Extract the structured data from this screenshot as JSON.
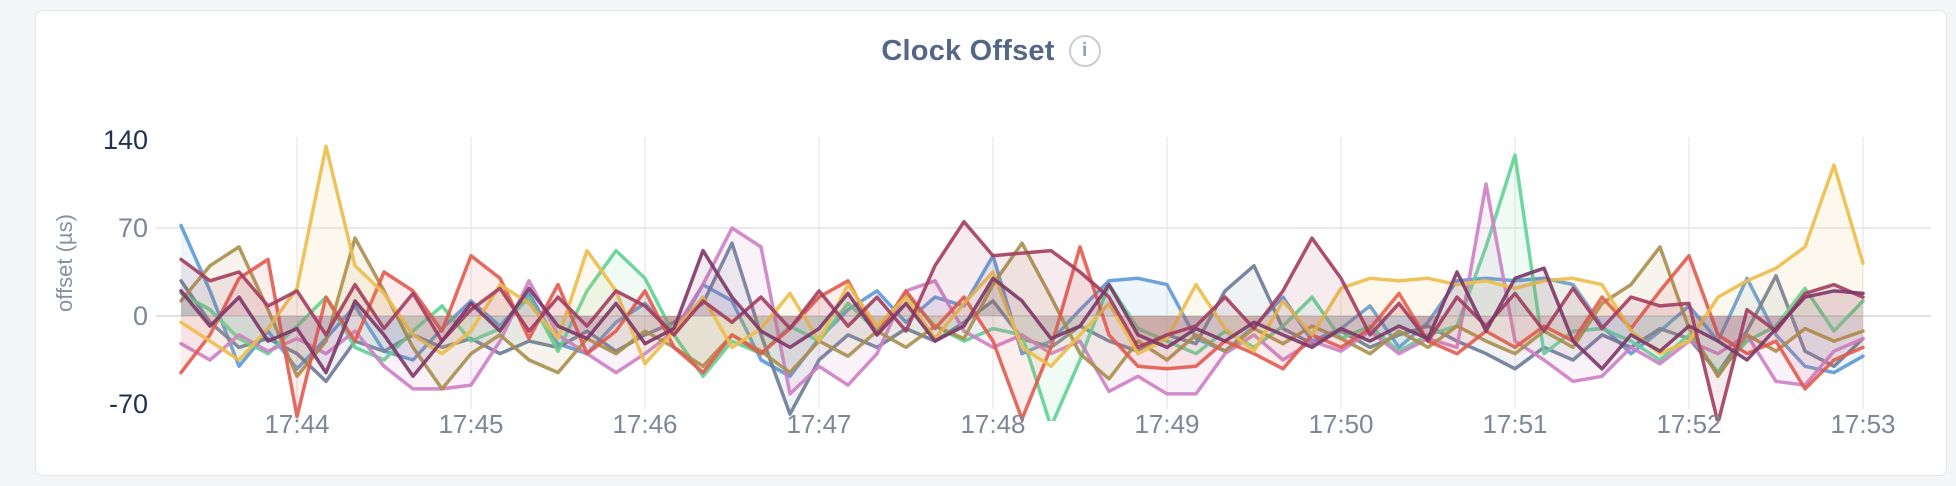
{
  "page": {
    "background": "#f4f5f7",
    "card_background": "#ffffff",
    "card_border": "#e3e5e9"
  },
  "header": {
    "title": "Clock Offset",
    "info_glyph": "i"
  },
  "axis_colors": {
    "tick_muted": "#7c8798",
    "tick_strong": "#1f3150",
    "grid_vertical": "#ececec",
    "grid_h70": "#e3e3e3",
    "grid_h0": "#d8d8d8"
  },
  "chart_data": {
    "type": "line",
    "title": "Clock Offset",
    "xlabel": "",
    "ylabel": "offset (µs)",
    "ylim": [
      -70,
      140
    ],
    "grid": true,
    "legend": "none",
    "x_sample_interval_seconds": 10,
    "x_start_time": "17:43:20",
    "yticks": [
      {
        "label": "140",
        "value": 140,
        "strong": true,
        "gridline": false
      },
      {
        "label": "70",
        "value": 70,
        "strong": false,
        "gridline": true
      },
      {
        "label": "0",
        "value": 0,
        "strong": false,
        "gridline": true
      },
      {
        "label": "-70",
        "value": -70,
        "strong": true,
        "gridline": false
      }
    ],
    "xticks": [
      {
        "label": "17:44",
        "index": 4
      },
      {
        "label": "17:45",
        "index": 10
      },
      {
        "label": "17:46",
        "index": 16
      },
      {
        "label": "17:47",
        "index": 22
      },
      {
        "label": "17:48",
        "index": 28
      },
      {
        "label": "17:49",
        "index": 34
      },
      {
        "label": "17:50",
        "index": 40
      },
      {
        "label": "17:51",
        "index": 46
      },
      {
        "label": "17:52",
        "index": 52
      },
      {
        "label": "17:53",
        "index": 58
      }
    ],
    "series": [
      {
        "name": "blue",
        "color": "#5c99d6",
        "values": [
          72,
          20,
          -40,
          -12,
          -42,
          -18,
          8,
          -28,
          -35,
          -10,
          12,
          -8,
          18,
          -22,
          -30,
          -5,
          10,
          -15,
          25,
          12,
          -35,
          -48,
          -18,
          5,
          20,
          -5,
          15,
          8,
          48,
          -30,
          -20,
          5,
          28,
          30,
          25,
          -18,
          -28,
          -8,
          15,
          -20,
          -10,
          8,
          -25,
          -5,
          28,
          30,
          28,
          30,
          25,
          -8,
          -30,
          -12,
          8,
          -20,
          30,
          -15,
          -40,
          -45,
          -32
        ]
      },
      {
        "name": "slate",
        "color": "#6a7b96",
        "values": [
          28,
          -5,
          -25,
          -18,
          -30,
          -52,
          -20,
          -28,
          -15,
          -25,
          -18,
          -30,
          -20,
          -25,
          -12,
          -28,
          -15,
          -5,
          10,
          58,
          -15,
          -78,
          -35,
          -15,
          -25,
          -10,
          -20,
          -5,
          12,
          -18,
          -25,
          -8,
          -20,
          -28,
          -15,
          -22,
          20,
          40,
          -10,
          -22,
          -12,
          -25,
          -15,
          -8,
          -20,
          -30,
          -42,
          -25,
          -35,
          -15,
          -25,
          -10,
          -18,
          -45,
          -12,
          32,
          -28,
          -40,
          -18
        ]
      },
      {
        "name": "green",
        "color": "#5fd394",
        "values": [
          18,
          5,
          -18,
          -30,
          -8,
          15,
          -25,
          -35,
          -12,
          8,
          -20,
          -10,
          15,
          -28,
          20,
          52,
          30,
          -15,
          -48,
          -20,
          -30,
          -8,
          -20,
          10,
          -12,
          18,
          -8,
          -20,
          -10,
          -15,
          -88,
          -35,
          25,
          -10,
          -20,
          -30,
          -12,
          -25,
          -8,
          15,
          -18,
          -8,
          -28,
          -15,
          -8,
          55,
          128,
          -30,
          -12,
          -10,
          -20,
          -35,
          -15,
          -45,
          -20,
          -8,
          22,
          -12,
          12
        ]
      },
      {
        "name": "orchid",
        "color": "#cd7fc4",
        "values": [
          -22,
          -35,
          -15,
          -28,
          -18,
          -30,
          -12,
          -40,
          -58,
          -58,
          -55,
          -20,
          28,
          -15,
          -30,
          -45,
          -30,
          -12,
          25,
          70,
          55,
          -62,
          -40,
          -55,
          -30,
          20,
          28,
          -12,
          -25,
          -15,
          -30,
          -20,
          -60,
          -48,
          -62,
          -62,
          -30,
          -15,
          -35,
          -20,
          -28,
          -12,
          -30,
          -18,
          -25,
          105,
          -20,
          -35,
          -52,
          -48,
          -25,
          -38,
          -20,
          -30,
          -15,
          -52,
          -55,
          -28,
          -18
        ]
      },
      {
        "name": "olive",
        "color": "#a98f4c",
        "values": [
          12,
          40,
          55,
          5,
          -48,
          -20,
          62,
          20,
          -25,
          -58,
          -30,
          -15,
          -35,
          -45,
          -18,
          -30,
          -12,
          -25,
          -40,
          -15,
          -28,
          -45,
          -20,
          -32,
          -12,
          -25,
          -8,
          -18,
          25,
          58,
          15,
          -30,
          -50,
          -20,
          -35,
          -15,
          -28,
          -10,
          -22,
          -8,
          -18,
          -30,
          -12,
          -25,
          -8,
          -20,
          -30,
          -12,
          -25,
          10,
          25,
          55,
          -10,
          -48,
          -15,
          -28,
          -10,
          -20,
          -12
        ]
      },
      {
        "name": "red",
        "color": "#e25a4e",
        "values": [
          -45,
          -15,
          30,
          45,
          -80,
          15,
          -20,
          35,
          20,
          -12,
          48,
          30,
          -18,
          25,
          -30,
          -12,
          20,
          -25,
          -45,
          -15,
          -30,
          -10,
          15,
          28,
          -15,
          20,
          -10,
          15,
          -20,
          -82,
          -25,
          55,
          -15,
          -40,
          -42,
          -40,
          -20,
          -30,
          -42,
          -15,
          -25,
          -10,
          18,
          -20,
          -30,
          -12,
          -25,
          -8,
          -20,
          15,
          -10,
          20,
          48,
          -15,
          -30,
          -20,
          -58,
          -35,
          -25
        ]
      },
      {
        "name": "yellow",
        "color": "#edbd4a",
        "values": [
          -5,
          -20,
          -35,
          -10,
          22,
          135,
          40,
          18,
          -15,
          -30,
          -12,
          25,
          10,
          -18,
          52,
          20,
          -38,
          -12,
          15,
          -25,
          -10,
          18,
          -20,
          25,
          -8,
          15,
          -18,
          10,
          35,
          -25,
          -40,
          -15,
          10,
          -30,
          -18,
          25,
          -10,
          -28,
          12,
          -15,
          22,
          30,
          28,
          30,
          25,
          28,
          22,
          28,
          30,
          25,
          -12,
          -30,
          -20,
          15,
          28,
          38,
          55,
          120,
          42
        ]
      },
      {
        "name": "maroon",
        "color": "#a33d5e",
        "values": [
          45,
          28,
          35,
          8,
          20,
          -15,
          25,
          -10,
          18,
          -20,
          5,
          22,
          -12,
          15,
          -8,
          20,
          8,
          -15,
          12,
          -5,
          15,
          -10,
          20,
          -8,
          15,
          -12,
          40,
          75,
          48,
          50,
          52,
          35,
          15,
          -25,
          -15,
          -8,
          15,
          -10,
          20,
          62,
          30,
          -15,
          10,
          -20,
          15,
          -8,
          18,
          -12,
          22,
          -10,
          15,
          8,
          10,
          -85,
          5,
          -12,
          18,
          25,
          15
        ]
      },
      {
        "name": "plum",
        "color": "#7c3767",
        "values": [
          20,
          -8,
          15,
          -20,
          -10,
          -45,
          12,
          -15,
          -48,
          -20,
          10,
          -12,
          22,
          -8,
          -18,
          10,
          -22,
          -10,
          52,
          15,
          -12,
          -25,
          -10,
          18,
          -15,
          10,
          -20,
          -8,
          30,
          12,
          -18,
          -8,
          25,
          -15,
          -25,
          -10,
          -20,
          -5,
          -15,
          -25,
          -10,
          -20,
          -8,
          -18,
          35,
          -12,
          30,
          38,
          -20,
          -42,
          -15,
          -28,
          -8,
          -20,
          -35,
          -10,
          15,
          20,
          18
        ]
      }
    ]
  }
}
